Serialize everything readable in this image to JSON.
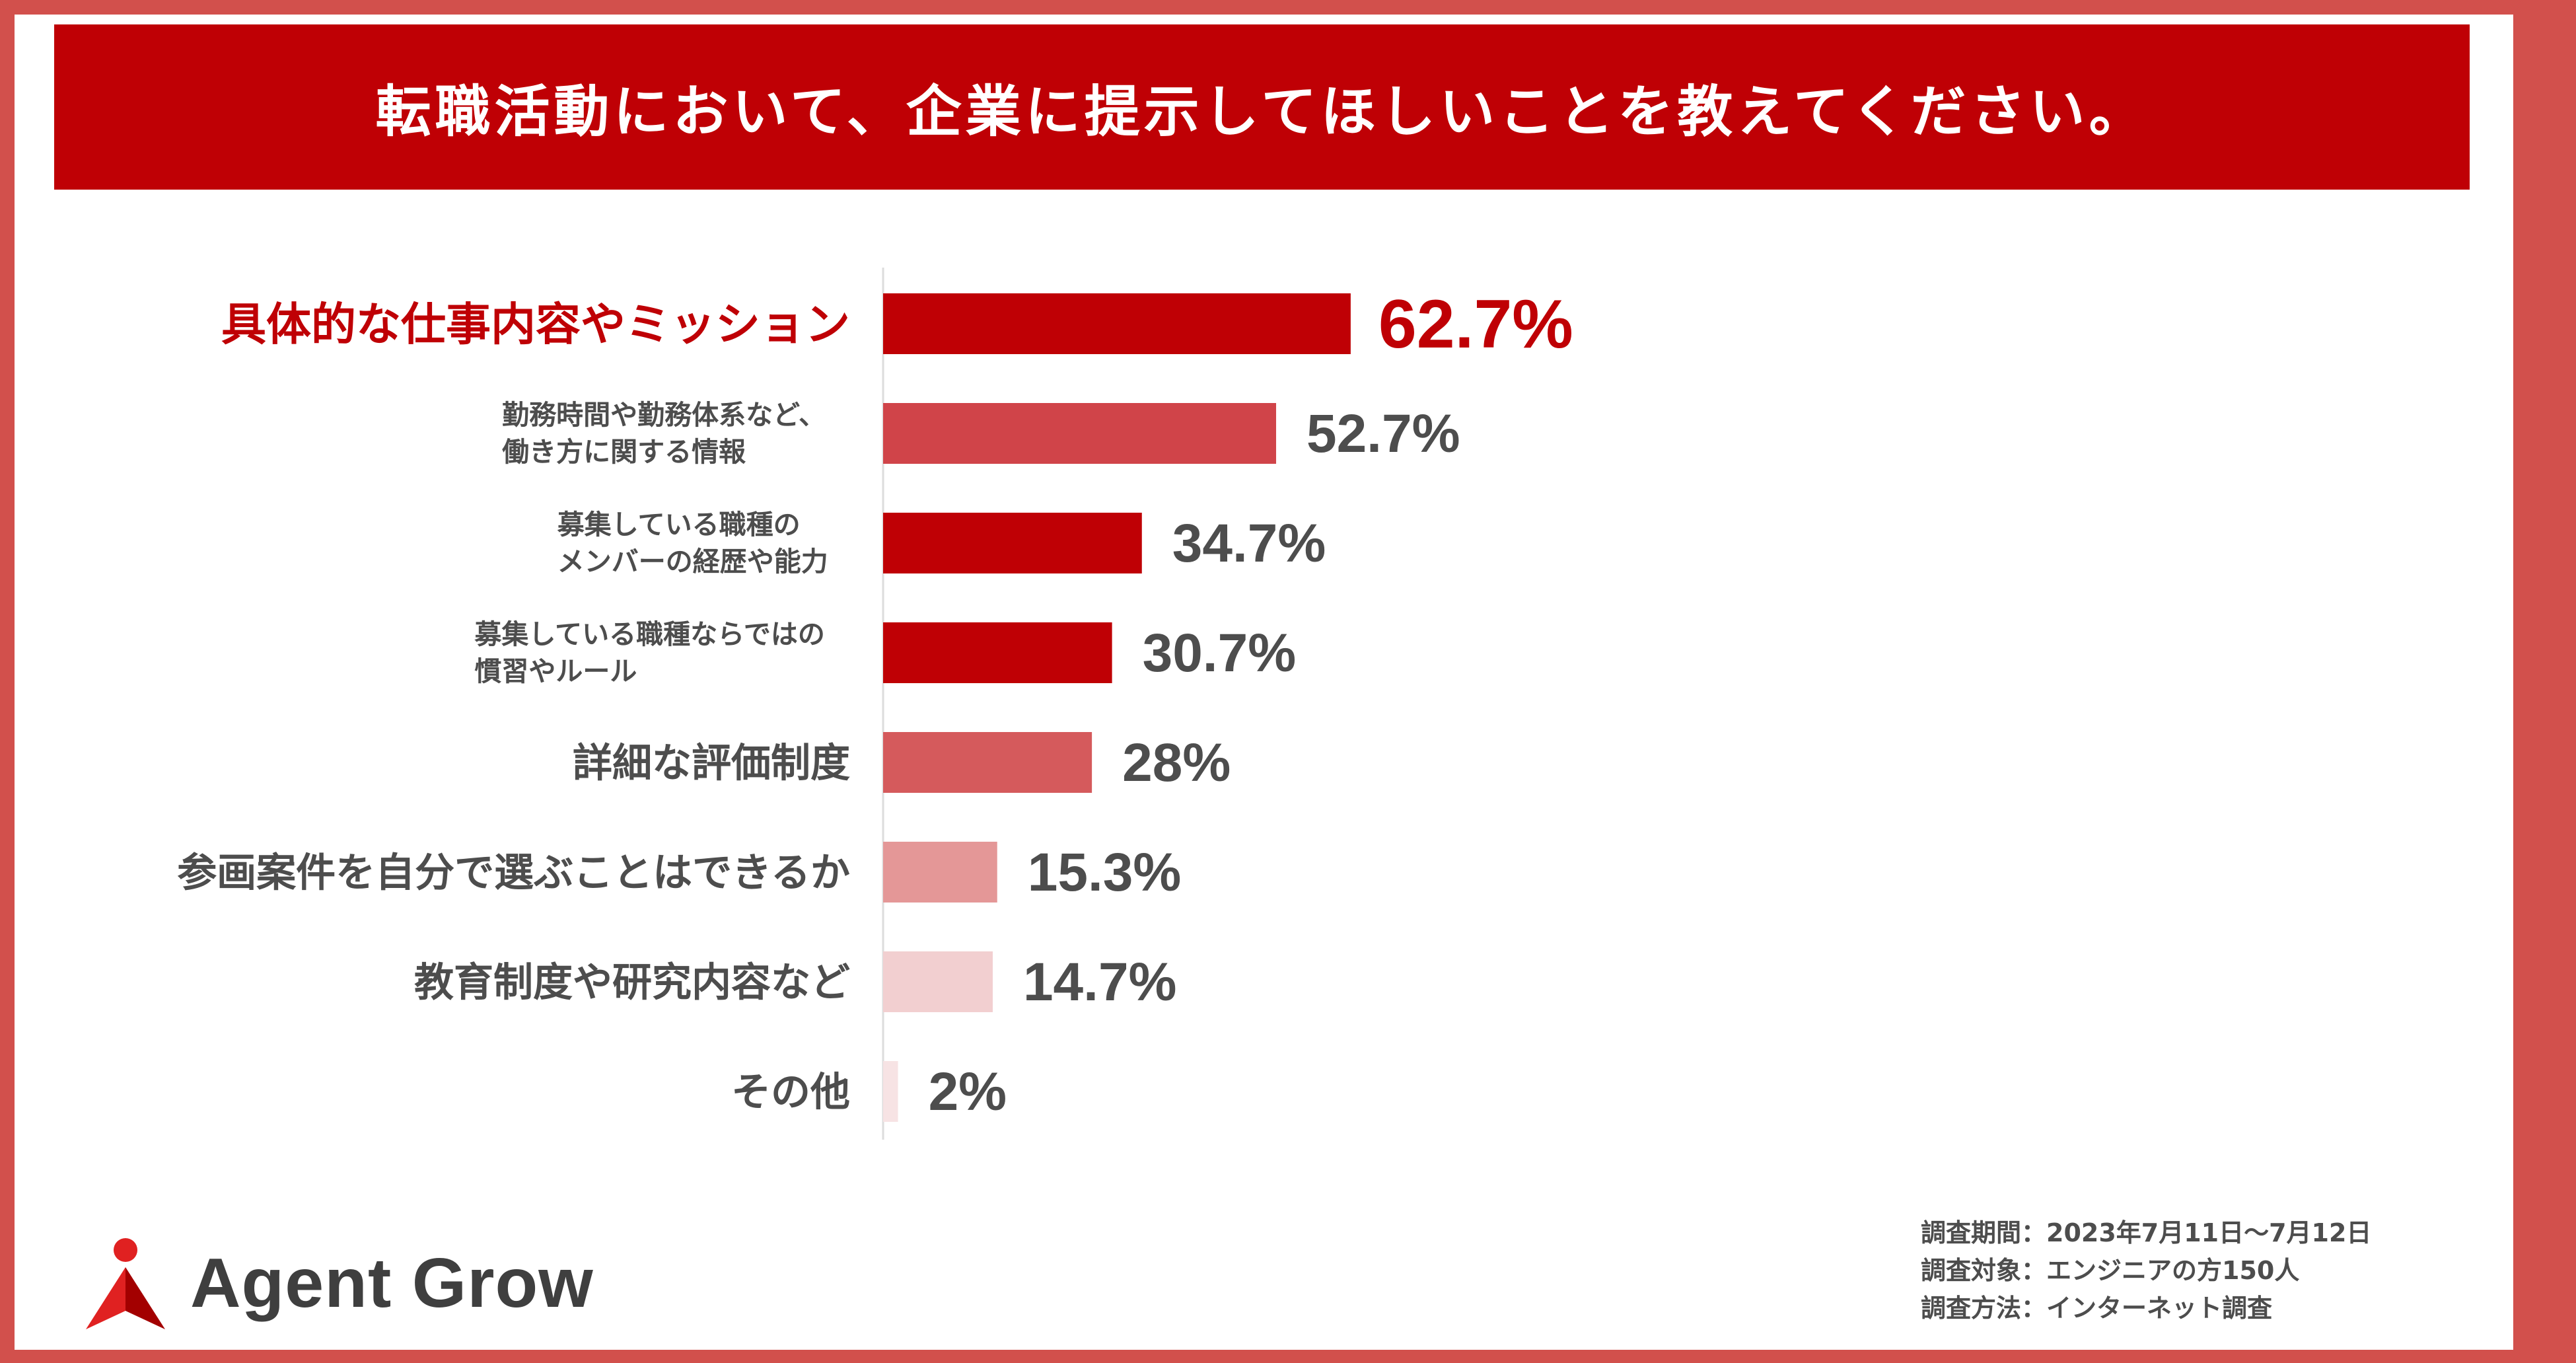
{
  "title": "転職活動において、企業に提示してほしいことを教えてください。",
  "colors": {
    "frame": "#d2504c",
    "title_bg": "#bf0005",
    "highlight_text": "#bf0005",
    "label_text": "#4d4d4d",
    "axis": "#dddddd"
  },
  "chart_data": {
    "type": "bar",
    "orientation": "horizontal",
    "categories": [
      [
        "具体的な仕事内容やミッション"
      ],
      [
        "勤務時間や勤務体系など、",
        "働き方に関する情報"
      ],
      [
        "募集している職種の",
        "メンバーの経歴や能力"
      ],
      [
        "募集している職種ならではの",
        "慣習やルール"
      ],
      [
        "詳細な評価制度"
      ],
      [
        "参画案件を自分で選ぶことはできるか"
      ],
      [
        "教育制度や研究内容など"
      ],
      [
        "その他"
      ]
    ],
    "values": [
      62.7,
      52.7,
      34.7,
      30.7,
      28,
      15.3,
      14.7,
      2
    ],
    "value_labels": [
      "62.7%",
      "52.7%",
      "34.7%",
      "30.7%",
      "28%",
      "15.3%",
      "14.7%",
      "2%"
    ],
    "bar_colors": [
      "#bf0005",
      "#d04449",
      "#bf0005",
      "#bf0005",
      "#d55a5c",
      "#e49797",
      "#f2cfd0",
      "#f7e3e4"
    ],
    "highlight_index": 0,
    "xlim": [
      0,
      100
    ],
    "grid": false,
    "legend": "none"
  },
  "logo": {
    "text": "Agent Grow",
    "icon": "agent-grow-person-icon",
    "colors": [
      "#e02121",
      "#f07a7a",
      "#a30000"
    ]
  },
  "survey_info": [
    "調査期間：2023年7月11日〜7月12日",
    "調査対象：エンジニアの方150人",
    "調査方法：インターネット調査"
  ]
}
